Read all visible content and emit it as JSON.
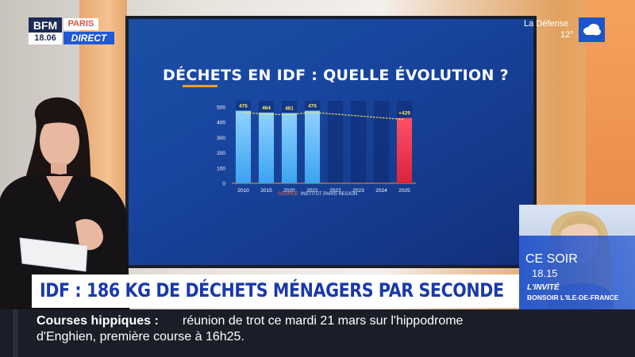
{
  "channel": {
    "logo": "BFM",
    "time": "18.06",
    "city": "PARIS",
    "live": "DIRECT"
  },
  "weather": {
    "city": "La Défense",
    "temperature": "12°",
    "icon": "cloud-icon"
  },
  "screen": {
    "title": "DÉCHETS EN IDF : QUELLE ÉVOLUTION ?",
    "source_key": "SOURCE",
    "source_value": "INSTITUT PARIS REGION"
  },
  "chart_data": {
    "type": "bar",
    "categories": [
      "2010",
      "2015",
      "2020",
      "2021",
      "2022",
      "2023",
      "2024",
      "2025"
    ],
    "series": [
      {
        "values": [
          476,
          464,
          461,
          476,
          null,
          null,
          null,
          429
        ],
        "labels": [
          "476",
          "464",
          "461",
          "476",
          "",
          "",
          "",
          "+429"
        ]
      }
    ],
    "trend_line": true,
    "ylim": [
      0,
      500
    ],
    "yticks": [
      0,
      100,
      200,
      300,
      400,
      500
    ],
    "grid": false,
    "colors": {
      "bar": "#3aa3f0",
      "highlight_bar": "#d8243d",
      "label": "#f4e56a",
      "trend": "#f0e05c"
    },
    "highlight_category": "2025"
  },
  "guest": {
    "ce_soir": "CE SOIR",
    "time": "18.15",
    "label": "L'INVITÉ",
    "show": "BONSOIR L'ILE-DE-FRANCE"
  },
  "headline": {
    "text": "IDF : 186 KG DE DÉCHETS MÉNAGERS PAR SECONDE"
  },
  "ticker": {
    "topic": "Courses hippiques :",
    "line1": "réunion de trot ce mardi 21 mars sur l'hippodrome",
    "line2": "d'Enghien, première course à 16h25."
  }
}
